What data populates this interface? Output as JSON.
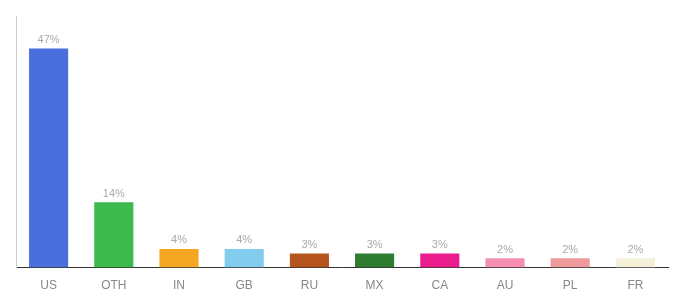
{
  "chart_data": {
    "type": "bar",
    "categories": [
      "US",
      "OTH",
      "IN",
      "GB",
      "RU",
      "MX",
      "CA",
      "AU",
      "PL",
      "FR"
    ],
    "values": [
      47,
      14,
      4,
      4,
      3,
      3,
      3,
      2,
      2,
      2
    ],
    "value_labels": [
      "47%",
      "14%",
      "4%",
      "4%",
      "3%",
      "3%",
      "3%",
      "2%",
      "2%",
      "2%"
    ],
    "colors": [
      "#4a6fdc",
      "#3dba4e",
      "#f5a623",
      "#82ccee",
      "#b5541e",
      "#2e7d32",
      "#e91e8c",
      "#f48fb1",
      "#ef9a9a",
      "#f5f0d8"
    ],
    "ylim": [
      0,
      54
    ],
    "grid": false,
    "data_labels": true,
    "tick_labels": "x"
  }
}
